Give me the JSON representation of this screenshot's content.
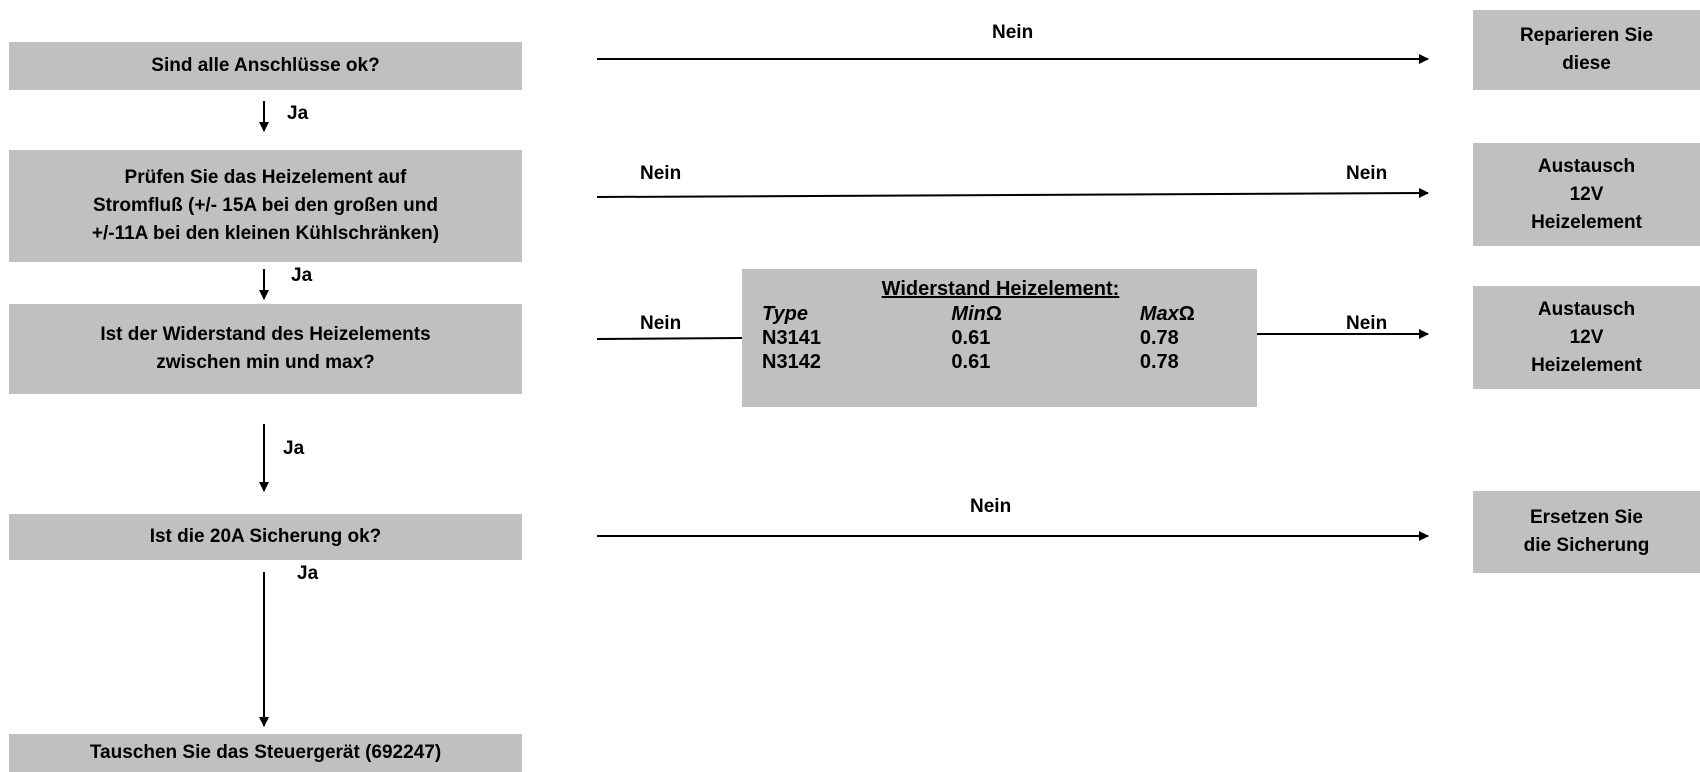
{
  "decisions": {
    "q1": "Sind alle Anschlüsse ok?",
    "q2": [
      "Prüfen Sie das Heizelement auf",
      "Stromfluß (+/- 15A bei den großen und",
      "+/-11A bei den kleinen Kühlschränken)"
    ],
    "q3": [
      "Ist der Widerstand des Heizelements",
      "zwischen min und max?"
    ],
    "q4": "Ist die 20A Sicherung ok?",
    "final": "Tauschen Sie das Steuergerät (692247)"
  },
  "actions": {
    "a1": [
      "Reparieren Sie",
      "diese"
    ],
    "a2": [
      "Austausch",
      "12V",
      "Heizelement"
    ],
    "a3": [
      "Austausch",
      "12V",
      "Heizelement"
    ],
    "a4": [
      "Ersetzen Sie",
      "die Sicherung"
    ]
  },
  "labels": {
    "yes": "Ja",
    "no": "Nein"
  },
  "resistance_table": {
    "title": "Widerstand Heizelement:",
    "headers": {
      "type": "Type",
      "min_prefix": "Min",
      "max_prefix": "Max",
      "unit": "Ω"
    },
    "rows": [
      {
        "type": "N3141",
        "min": "0.61",
        "max": "0.78"
      },
      {
        "type": "N3142",
        "min": "0.61",
        "max": "0.78"
      }
    ]
  },
  "colors": {
    "box_fill": "#c0c0c0",
    "line": "#000000"
  }
}
